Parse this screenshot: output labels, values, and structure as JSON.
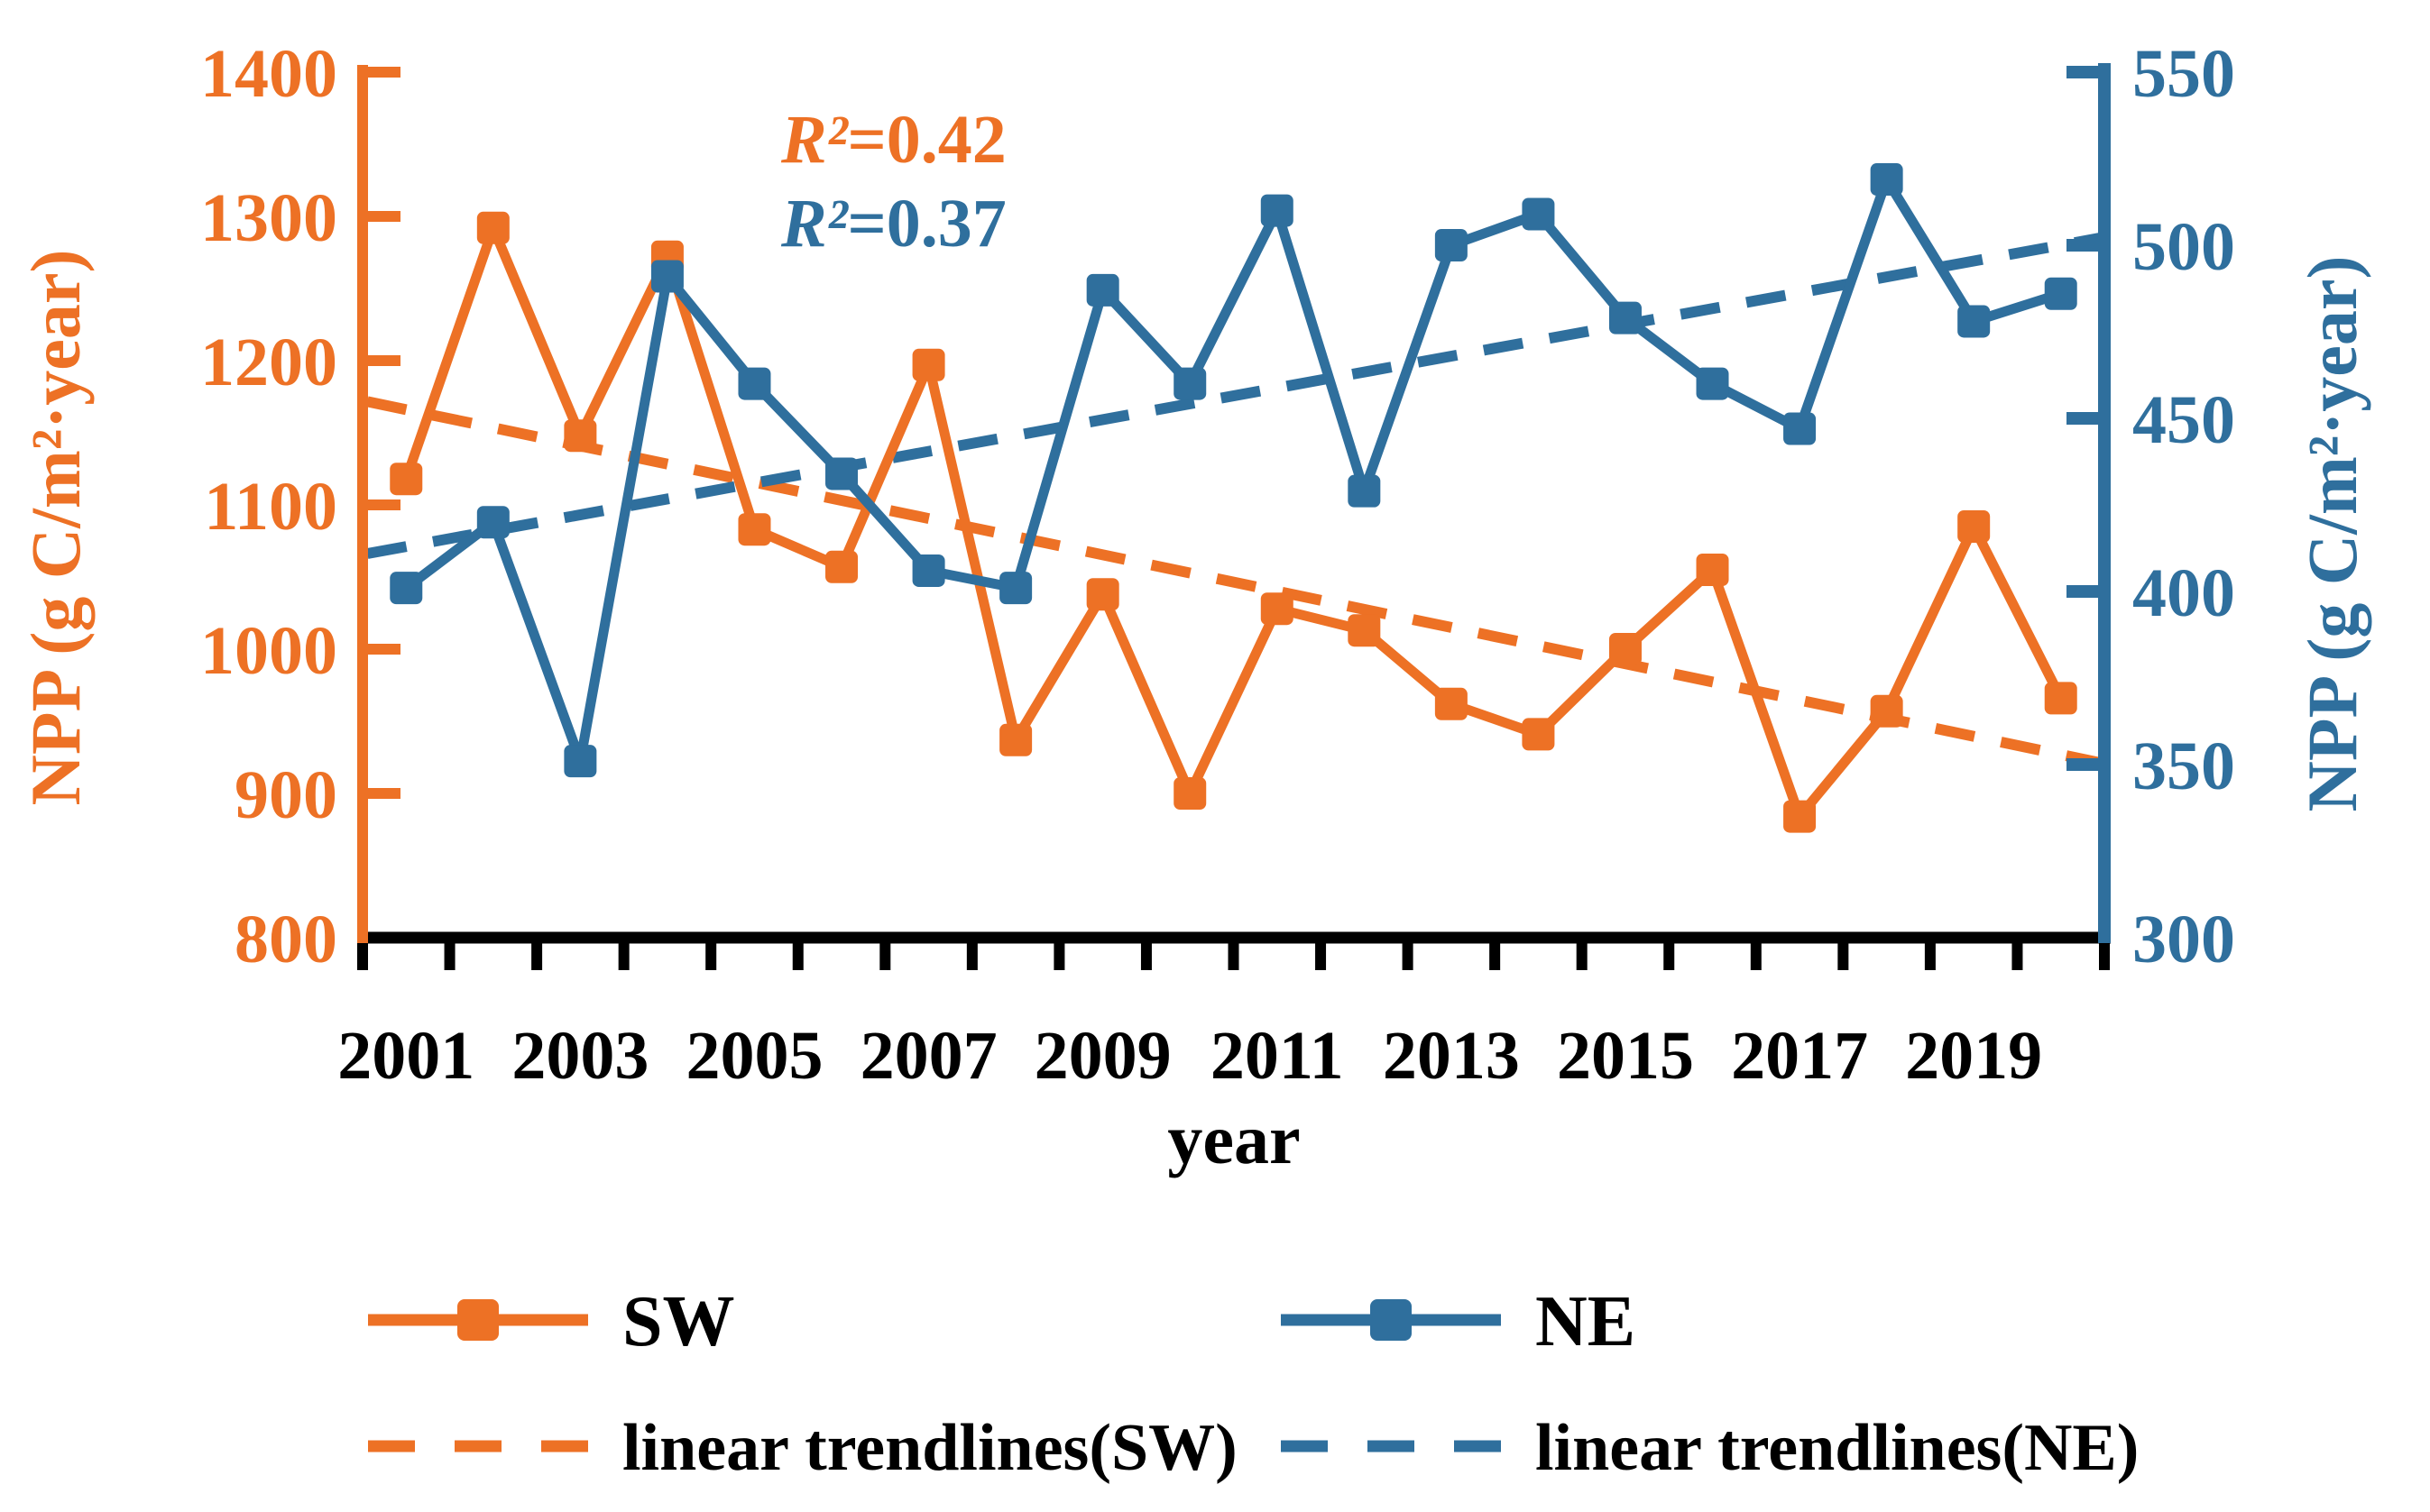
{
  "chart_data": {
    "type": "line",
    "xlabel": "year",
    "x": [
      2001,
      2002,
      2003,
      2004,
      2005,
      2006,
      2007,
      2008,
      2009,
      2010,
      2011,
      2012,
      2013,
      2014,
      2015,
      2016,
      2017,
      2018,
      2019,
      2020
    ],
    "x_tick_labels": [
      "2001",
      "2003",
      "2005",
      "2007",
      "2009",
      "2011",
      "2013",
      "2015",
      "2017",
      "2019"
    ],
    "grid": false,
    "legend_position": "bottom",
    "left_axis": {
      "label": "NPP (g C/m²·year)",
      "min": 800,
      "max": 1400,
      "ticks": [
        1400,
        1300,
        1200,
        1100,
        1000,
        900,
        800
      ],
      "color": "#ED7125"
    },
    "right_axis": {
      "label": "NPP (g C/m²·year)",
      "min": 300,
      "max": 550,
      "ticks": [
        550,
        500,
        450,
        400,
        350,
        300
      ],
      "color": "#2F6F9D"
    },
    "series": [
      {
        "name": "SW",
        "axis": "left",
        "color": "#ED7125",
        "values": [
          1118,
          1292,
          1148,
          1272,
          1083,
          1057,
          1197,
          937,
          1038,
          900,
          1028,
          1013,
          962,
          941,
          1000,
          1055,
          884,
          957,
          1085,
          966
        ]
      },
      {
        "name": "NE",
        "axis": "right",
        "color": "#2F6F9D",
        "values": [
          401,
          420,
          351,
          491,
          460,
          434,
          406,
          401,
          487,
          460,
          510,
          429,
          500,
          509,
          479,
          460,
          447,
          519,
          478,
          486
        ]
      }
    ],
    "trendlines": [
      {
        "name": "linear trendlines(SW)",
        "axis": "left",
        "color": "#ED7125",
        "start_value": 1166,
        "end_value": 927
      },
      {
        "name": "linear trendlines(NE)",
        "axis": "right",
        "color": "#2F6F9D",
        "start_value": 413,
        "end_value": 500
      }
    ],
    "annotations": [
      {
        "prefix": "R²",
        "suffix": "=0.42",
        "series": "SW",
        "color": "#ED7125"
      },
      {
        "prefix": "R²",
        "suffix": "=0.37",
        "series": "NE",
        "color": "#2F6F9D"
      }
    ],
    "text_color": "#000000"
  }
}
